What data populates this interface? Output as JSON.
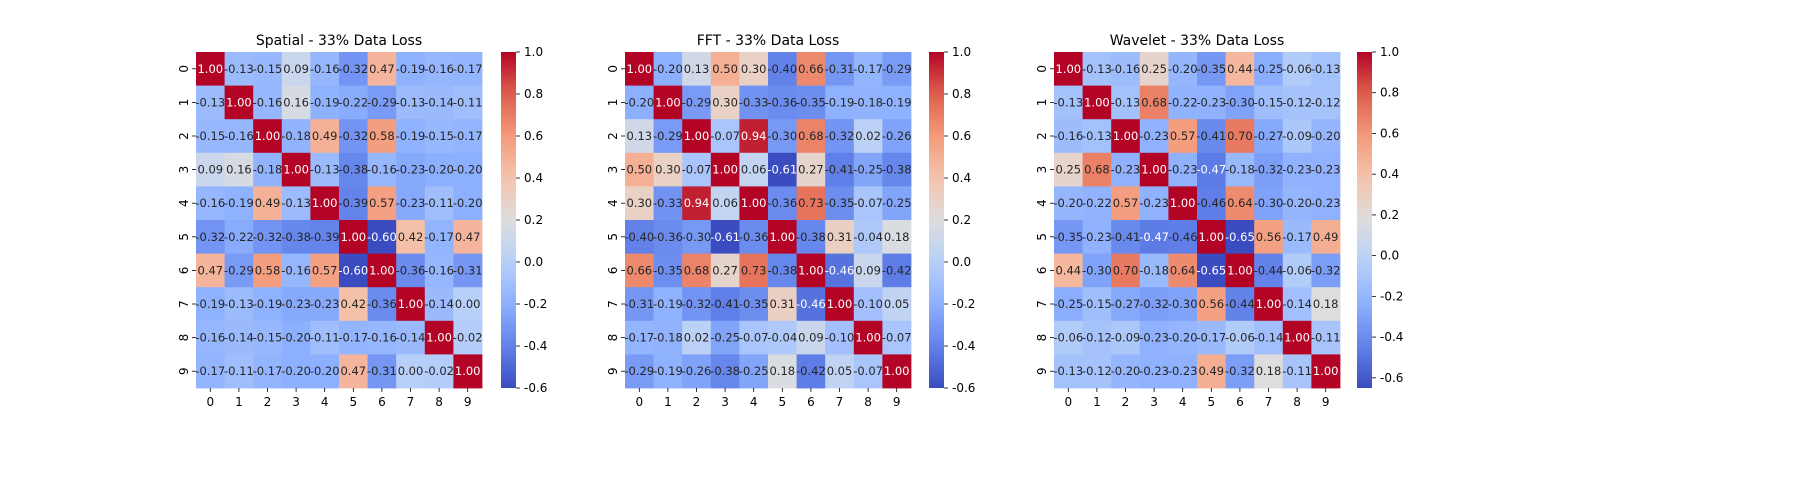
{
  "chart_data": [
    {
      "type": "heatmap",
      "title": "Spatial - 33% Data Loss",
      "x_labels": [
        "0",
        "1",
        "2",
        "3",
        "4",
        "5",
        "6",
        "7",
        "8",
        "9"
      ],
      "y_labels": [
        "0",
        "1",
        "2",
        "3",
        "4",
        "5",
        "6",
        "7",
        "8",
        "9"
      ],
      "colormap": "coolwarm",
      "vmin": -0.6,
      "vmax": 1.0,
      "colorbar_ticks": [
        "-0.6",
        "-0.4",
        "-0.2",
        "0.0",
        "0.2",
        "0.4",
        "0.6",
        "0.8",
        "1.0"
      ],
      "annotated": true,
      "values": [
        [
          1.0,
          -0.13,
          -0.15,
          0.09,
          -0.16,
          -0.32,
          0.47,
          -0.19,
          -0.16,
          -0.17
        ],
        [
          -0.13,
          1.0,
          -0.16,
          0.16,
          -0.19,
          -0.22,
          -0.29,
          -0.13,
          -0.14,
          -0.11
        ],
        [
          -0.15,
          -0.16,
          1.0,
          -0.18,
          0.49,
          -0.32,
          0.58,
          -0.19,
          -0.15,
          -0.17
        ],
        [
          0.09,
          0.16,
          -0.18,
          1.0,
          -0.13,
          -0.38,
          -0.16,
          -0.23,
          -0.2,
          -0.2
        ],
        [
          -0.16,
          -0.19,
          0.49,
          -0.13,
          1.0,
          -0.39,
          0.57,
          -0.23,
          -0.11,
          -0.2
        ],
        [
          -0.32,
          -0.22,
          -0.32,
          -0.38,
          -0.39,
          1.0,
          -0.6,
          0.42,
          -0.17,
          0.47
        ],
        [
          0.47,
          -0.29,
          0.58,
          -0.16,
          0.57,
          -0.6,
          1.0,
          -0.36,
          -0.16,
          -0.31
        ],
        [
          -0.19,
          -0.13,
          -0.19,
          -0.23,
          -0.23,
          0.42,
          -0.36,
          1.0,
          -0.14,
          0.0
        ],
        [
          -0.16,
          -0.14,
          -0.15,
          -0.2,
          -0.11,
          -0.17,
          -0.16,
          -0.14,
          1.0,
          -0.02
        ],
        [
          -0.17,
          -0.11,
          -0.17,
          -0.2,
          -0.2,
          0.47,
          -0.31,
          0.0,
          -0.02,
          1.0
        ]
      ]
    },
    {
      "type": "heatmap",
      "title": "FFT - 33% Data Loss",
      "x_labels": [
        "0",
        "1",
        "2",
        "3",
        "4",
        "5",
        "6",
        "7",
        "8",
        "9"
      ],
      "y_labels": [
        "0",
        "1",
        "2",
        "3",
        "4",
        "5",
        "6",
        "7",
        "8",
        "9"
      ],
      "colormap": "coolwarm",
      "vmin": -0.6,
      "vmax": 1.0,
      "colorbar_ticks": [
        "-0.6",
        "-0.4",
        "-0.2",
        "0.0",
        "0.2",
        "0.4",
        "0.6",
        "0.8",
        "1.0"
      ],
      "annotated": true,
      "values": [
        [
          1.0,
          -0.2,
          0.13,
          0.5,
          0.3,
          -0.4,
          0.66,
          -0.31,
          -0.17,
          -0.29
        ],
        [
          -0.2,
          1.0,
          -0.29,
          0.3,
          -0.33,
          -0.36,
          -0.35,
          -0.19,
          -0.18,
          -0.19
        ],
        [
          0.13,
          -0.29,
          1.0,
          -0.07,
          0.94,
          -0.3,
          0.68,
          -0.32,
          0.02,
          -0.26
        ],
        [
          0.5,
          0.3,
          -0.07,
          1.0,
          0.06,
          -0.61,
          0.27,
          -0.41,
          -0.25,
          -0.38
        ],
        [
          0.3,
          -0.33,
          0.94,
          0.06,
          1.0,
          -0.36,
          0.73,
          -0.35,
          -0.07,
          -0.25
        ],
        [
          -0.4,
          -0.36,
          -0.3,
          -0.61,
          -0.36,
          1.0,
          -0.38,
          0.31,
          -0.04,
          0.18
        ],
        [
          0.66,
          -0.35,
          0.68,
          0.27,
          0.73,
          -0.38,
          1.0,
          -0.46,
          0.09,
          -0.42
        ],
        [
          -0.31,
          -0.19,
          -0.32,
          -0.41,
          -0.35,
          0.31,
          -0.46,
          1.0,
          -0.1,
          0.05
        ],
        [
          -0.17,
          -0.18,
          0.02,
          -0.25,
          -0.07,
          -0.04,
          0.09,
          -0.1,
          1.0,
          -0.07
        ],
        [
          -0.29,
          -0.19,
          -0.26,
          -0.38,
          -0.25,
          0.18,
          -0.42,
          0.05,
          -0.07,
          1.0
        ]
      ]
    },
    {
      "type": "heatmap",
      "title": "Wavelet - 33% Data Loss",
      "x_labels": [
        "0",
        "1",
        "2",
        "3",
        "4",
        "5",
        "6",
        "7",
        "8",
        "9"
      ],
      "y_labels": [
        "0",
        "1",
        "2",
        "3",
        "4",
        "5",
        "6",
        "7",
        "8",
        "9"
      ],
      "colormap": "coolwarm",
      "vmin": -0.65,
      "vmax": 1.0,
      "colorbar_ticks": [
        "-0.6",
        "-0.4",
        "-0.2",
        "0.0",
        "0.2",
        "0.4",
        "0.6",
        "0.8",
        "1.0"
      ],
      "annotated": true,
      "values": [
        [
          1.0,
          -0.13,
          -0.16,
          0.25,
          -0.2,
          -0.35,
          0.44,
          -0.25,
          -0.06,
          -0.13
        ],
        [
          -0.13,
          1.0,
          -0.13,
          0.68,
          -0.22,
          -0.23,
          -0.3,
          -0.15,
          -0.12,
          -0.12
        ],
        [
          -0.16,
          -0.13,
          1.0,
          -0.23,
          0.57,
          -0.41,
          0.7,
          -0.27,
          -0.09,
          -0.2
        ],
        [
          0.25,
          0.68,
          -0.23,
          1.0,
          -0.23,
          -0.47,
          -0.18,
          -0.32,
          -0.23,
          -0.23
        ],
        [
          -0.2,
          -0.22,
          0.57,
          -0.23,
          1.0,
          -0.46,
          0.64,
          -0.3,
          -0.2,
          -0.23
        ],
        [
          -0.35,
          -0.23,
          -0.41,
          -0.47,
          -0.46,
          1.0,
          -0.65,
          0.56,
          -0.17,
          0.49
        ],
        [
          0.44,
          -0.3,
          0.7,
          -0.18,
          0.64,
          -0.65,
          1.0,
          -0.44,
          -0.06,
          -0.32
        ],
        [
          -0.25,
          -0.15,
          -0.27,
          -0.32,
          -0.3,
          0.56,
          -0.44,
          1.0,
          -0.14,
          0.18
        ],
        [
          -0.06,
          -0.12,
          -0.09,
          -0.23,
          -0.2,
          -0.17,
          -0.06,
          -0.14,
          1.0,
          -0.11
        ],
        [
          -0.13,
          -0.12,
          -0.2,
          -0.23,
          -0.23,
          0.49,
          -0.32,
          0.18,
          -0.11,
          1.0
        ]
      ]
    }
  ]
}
